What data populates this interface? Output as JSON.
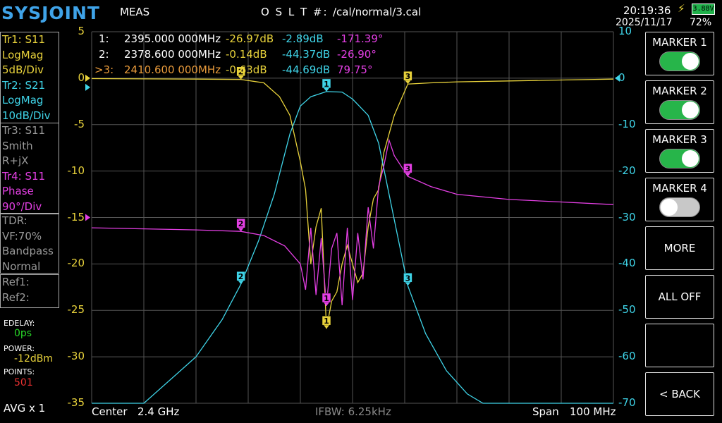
{
  "header": {
    "logo": "SYSJOINT",
    "meas": "MEAS",
    "oslt": "O S L T #:",
    "cal_path": "/cal/normal/3.cal",
    "time": "20:19:36",
    "date": "2025/11/17",
    "battery_voltage": "3.88V",
    "battery_percent": "72%"
  },
  "traces": [
    {
      "line1": "Tr1:   S11",
      "line2": "LogMag",
      "line3": "5dB/Div",
      "color": "#e8d23b"
    },
    {
      "line1": "Tr2:   S21",
      "line2": "LogMag",
      "line3": "10dB/Div",
      "color": "#3fd4e8"
    },
    {
      "line1": "Tr3:   S11",
      "line2": "Smith",
      "line3": "R+jX",
      "color": "#9a9a9a"
    },
    {
      "line1": "Tr4:   S11",
      "line2": "Phase",
      "line3": "90°/Div",
      "color": "#e43fe4"
    }
  ],
  "tdr": {
    "line1": "TDR:",
    "line2": "VF:70%",
    "line3": "Bandpass",
    "line4": "Normal"
  },
  "refs": {
    "line1": "Ref1:",
    "line2": "Ref2:"
  },
  "settings": {
    "edelay_label": "EDELAY:",
    "edelay_value": "0ps",
    "power_label": "POWER:",
    "power_value": "-12dBm",
    "points_label": "POINTS:",
    "points_value": "501",
    "avg": "AVG x 1"
  },
  "markers": [
    {
      "prefix": "1:",
      "freq": "2395.000 000MHz",
      "s11": "-26.97dB",
      "s21": "-2.89dB",
      "phase": "-171.39°"
    },
    {
      "prefix": "2:",
      "freq": "2378.600 000MHz",
      "s11": "-0.14dB",
      "s21": "-44.37dB",
      "phase": "-26.90°"
    },
    {
      "prefix": ">3:",
      "freq": "2410.600 000MHz",
      "s11": "-0.63dB",
      "s21": "-44.69dB",
      "phase": "79.75°"
    }
  ],
  "left_axis": [
    "5",
    "0",
    "-5",
    "-10",
    "-15",
    "-20",
    "-25",
    "-30",
    "-35"
  ],
  "right_axis": [
    "10",
    "0",
    "-10",
    "-20",
    "-30",
    "-40",
    "-50",
    "-60",
    "-70"
  ],
  "buttons": {
    "marker1": {
      "label": "MARKER 1",
      "state": "on"
    },
    "marker2": {
      "label": "MARKER 2",
      "state": "on"
    },
    "marker3": {
      "label": "MARKER 3",
      "state": "on"
    },
    "marker4": {
      "label": "MARKER 4",
      "state": "off"
    },
    "more": "MORE",
    "all_off": "ALL OFF",
    "back": "< BACK"
  },
  "footer": {
    "center_label": "Center",
    "center_value": "2.4 GHz",
    "ifbw": "IFBW: 6.25kHz",
    "span_label": "Span",
    "span_value": "100 MHz"
  },
  "chart_data": {
    "type": "line",
    "x_range_mhz": [
      2350,
      2450
    ],
    "left_axis": {
      "ylim": [
        -35,
        5
      ],
      "unit": "dB",
      "div": 5
    },
    "right_axis": {
      "ylim": [
        -70,
        10
      ],
      "unit": "dB",
      "div": 10
    },
    "grid": true,
    "series": [
      {
        "color": "#e8d23b",
        "axis": "left",
        "x": [
          2350,
          2360,
          2370,
          2378.6,
          2383,
          2386,
          2388,
          2390,
          2391,
          2392,
          2393,
          2394,
          2395,
          2396,
          2397,
          2398,
          2399,
          2400,
          2401,
          2402,
          2403,
          2404,
          2405,
          2406,
          2407,
          2408,
          2410.6,
          2415,
          2420,
          2430,
          2440,
          2450
        ],
        "y": [
          -0.05,
          -0.08,
          -0.1,
          -0.14,
          -0.5,
          -2,
          -4,
          -9,
          -12,
          -20,
          -16,
          -14,
          -26.97,
          -24,
          -23,
          -20,
          -18,
          -20,
          -22,
          -21,
          -16,
          -13,
          -12,
          -8,
          -6,
          -4,
          -0.63,
          -0.5,
          -0.4,
          -0.3,
          -0.2,
          -0.1
        ]
      },
      {
        "color": "#3fd4e8",
        "axis": "right",
        "x": [
          2350,
          2360,
          2370,
          2375,
          2378.6,
          2382,
          2385,
          2388,
          2390,
          2392,
          2395,
          2398,
          2400,
          2403,
          2405,
          2407,
          2410.6,
          2414,
          2418,
          2422,
          2425,
          2430,
          2440,
          2450
        ],
        "y": [
          -72,
          -70,
          -60,
          -52,
          -44.37,
          -35,
          -25,
          -12,
          -6,
          -4,
          -2.89,
          -3,
          -4.5,
          -8,
          -14,
          -25,
          -44.69,
          -55,
          -63,
          -68,
          -71,
          -72,
          -72,
          -72
        ]
      },
      {
        "color": "#e43fe4",
        "axis": "phase",
        "x": [
          2350,
          2360,
          2370,
          2378.6,
          2383,
          2387,
          2390,
          2391,
          2392,
          2393,
          2394,
          2395,
          2396,
          2397,
          2398,
          2399,
          2400,
          2401,
          2402,
          2403,
          2404,
          2405,
          2406,
          2407,
          2408,
          2410.6,
          2415,
          2420,
          2430,
          2440,
          2450
        ],
        "y": [
          -20,
          -22,
          -24,
          -26.9,
          -35,
          -55,
          -90,
          -140,
          -20,
          -150,
          -40,
          -171.39,
          -60,
          -30,
          -170,
          -20,
          -160,
          -30,
          -120,
          20,
          -60,
          60,
          100,
          150,
          120,
          79.75,
          60,
          45,
          35,
          30,
          25
        ]
      }
    ]
  }
}
